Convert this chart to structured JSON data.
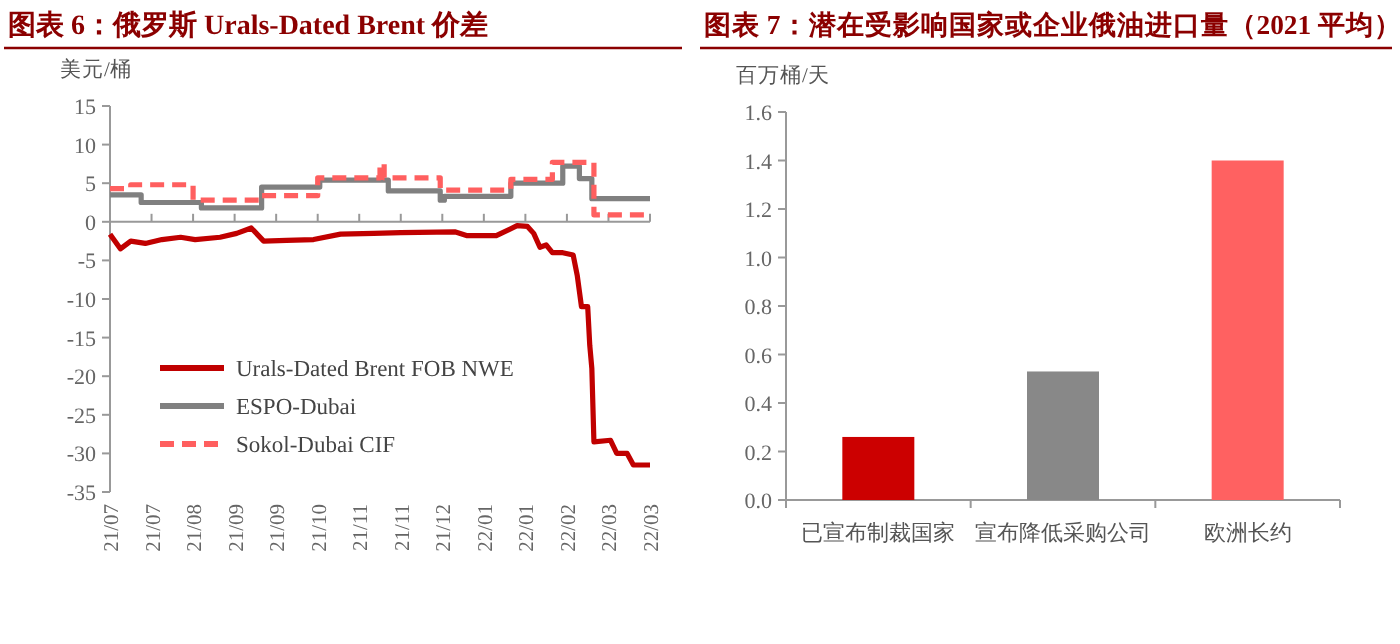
{
  "chart_data": [
    {
      "type": "line",
      "title": "图表 6：俄罗斯 Urals-Dated Brent 价差",
      "ylabel": "美元/桶",
      "xlim": [
        "2021-07-05",
        "2022-03-22"
      ],
      "xticks": [
        {
          "value": "2021-07-05",
          "label": "21/07"
        },
        {
          "value": "2021-07-25",
          "label": "21/07"
        },
        {
          "value": "2021-08-14",
          "label": "21/08"
        },
        {
          "value": "2021-09-03",
          "label": "21/09"
        },
        {
          "value": "2021-09-23",
          "label": "21/09"
        },
        {
          "value": "2021-10-13",
          "label": "21/10"
        },
        {
          "value": "2021-11-02",
          "label": "21/11"
        },
        {
          "value": "2021-11-22",
          "label": "21/11"
        },
        {
          "value": "2021-12-12",
          "label": "21/12"
        },
        {
          "value": "2022-01-01",
          "label": "22/01"
        },
        {
          "value": "2022-01-21",
          "label": "22/01"
        },
        {
          "value": "2022-02-10",
          "label": "22/02"
        },
        {
          "value": "2022-03-02",
          "label": "22/03"
        },
        {
          "value": "2022-03-22",
          "label": "22/03"
        }
      ],
      "ylim": [
        -35,
        15
      ],
      "yticks": [
        -35,
        -30,
        -25,
        -20,
        -15,
        -10,
        -5,
        0,
        5,
        10,
        15
      ],
      "legend": "bottom left",
      "marker": "none",
      "series": [
        {
          "name": "Urals-Dated Brent FOB NWE",
          "color": "#c00000",
          "type": "line",
          "line_style": "solid",
          "x": [
            "2021-07-05",
            "2021-07-10",
            "2021-07-15",
            "2021-07-22",
            "2021-07-30",
            "2021-08-08",
            "2021-08-15",
            "2021-08-27",
            "2021-09-04",
            "2021-09-11",
            "2021-09-17",
            "2021-09-28",
            "2021-10-11",
            "2021-10-24",
            "2021-11-09",
            "2021-11-22",
            "2021-12-18",
            "2021-12-24",
            "2022-01-07",
            "2022-01-17",
            "2022-01-22",
            "2022-01-25",
            "2022-01-28",
            "2022-01-31",
            "2022-02-03",
            "2022-02-08",
            "2022-02-13",
            "2022-02-15",
            "2022-02-17",
            "2022-02-20",
            "2022-02-21",
            "2022-02-22",
            "2022-02-23",
            "2022-03-03",
            "2022-03-06",
            "2022-03-11",
            "2022-03-14",
            "2022-03-22"
          ],
          "values": [
            -1.6,
            -3.5,
            -2.5,
            -2.8,
            -2.3,
            -2.0,
            -2.3,
            -2.0,
            -1.5,
            -0.8,
            -2.5,
            -2.4,
            -2.3,
            -1.6,
            -1.5,
            -1.4,
            -1.3,
            -1.8,
            -1.8,
            -0.5,
            -0.6,
            -1.5,
            -3.3,
            -3.0,
            -4.0,
            -4.0,
            -4.3,
            -7.0,
            -11.0,
            -11.0,
            -16.0,
            -19.0,
            -28.5,
            -28.3,
            -30.0,
            -30.0,
            -31.5,
            -31.5
          ]
        },
        {
          "name": "ESPO-Dubai",
          "color": "#808080",
          "type": "step",
          "line_style": "solid",
          "x": [
            "2021-07-05",
            "2021-07-20",
            "2021-08-18",
            "2021-09-16",
            "2021-10-14",
            "2021-11-16",
            "2021-12-11",
            "2021-12-13",
            "2022-01-14",
            "2022-02-08",
            "2022-02-16",
            "2022-02-22",
            "2022-03-22"
          ],
          "values": [
            3.5,
            2.5,
            1.8,
            4.5,
            5.4,
            4.0,
            2.8,
            3.3,
            5.0,
            7.2,
            5.6,
            3.0,
            3.0
          ]
        },
        {
          "name": "Sokol-Dubai CIF",
          "color": "#ff5f5f",
          "type": "step",
          "line_style": "dashed",
          "x": [
            "2021-07-05",
            "2021-07-15",
            "2021-08-14",
            "2021-09-16",
            "2021-10-13",
            "2021-11-12",
            "2021-11-14",
            "2021-12-11",
            "2022-01-14",
            "2022-02-03",
            "2022-02-23",
            "2022-03-22"
          ],
          "values": [
            4.3,
            4.8,
            2.8,
            3.4,
            5.7,
            7.5,
            5.7,
            4.1,
            5.5,
            7.7,
            0.9,
            0.9
          ]
        }
      ]
    },
    {
      "type": "bar",
      "title": "图表 7：潜在受影响国家或企业俄油进口量（2021 平均）",
      "ylabel": "百万桶/天",
      "categories": [
        "已宣布制裁国家",
        "宣布降低采购公司",
        "欧洲长约"
      ],
      "values": [
        0.26,
        0.53,
        1.4
      ],
      "colors": [
        "#cc0000",
        "#888888",
        "#ff6161"
      ],
      "ylim": [
        0,
        1.6
      ],
      "yticks": [
        {
          "value": 0,
          "label": "0.0"
        },
        {
          "value": 0.2,
          "label": "0.2"
        },
        {
          "value": 0.4,
          "label": "0.4"
        },
        {
          "value": 0.6,
          "label": "0.6"
        },
        {
          "value": 0.8,
          "label": "0.8"
        },
        {
          "value": 1.0,
          "label": "1.0"
        },
        {
          "value": 1.2,
          "label": "1.2"
        },
        {
          "value": 1.4,
          "label": "1.4"
        },
        {
          "value": 1.6,
          "label": "1.6"
        }
      ]
    }
  ]
}
